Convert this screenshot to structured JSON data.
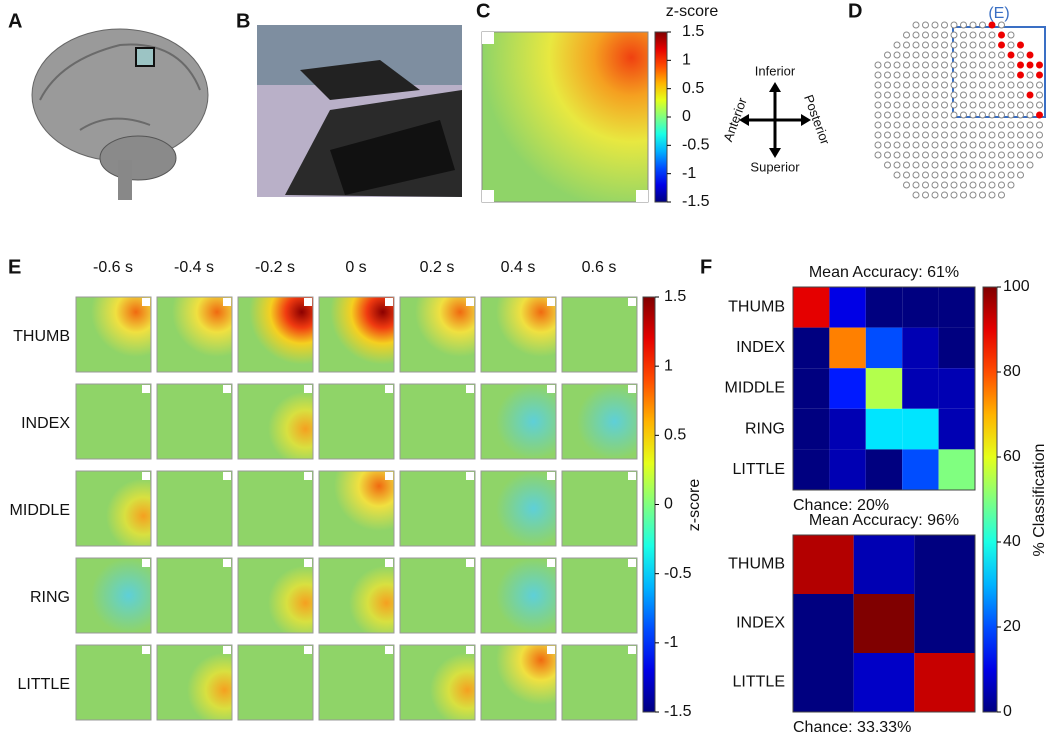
{
  "panel_labels": [
    "A",
    "B",
    "C",
    "D",
    "E",
    "F"
  ],
  "panel_c": {
    "colorbar_title": "z-score",
    "clim": [
      -1.5,
      1.5
    ],
    "colorbar_ticks": [
      1.5,
      1,
      0.5,
      0,
      -0.5,
      -1,
      -1.5
    ],
    "directions": {
      "inferior": "Inferior",
      "superior": "Superior",
      "anterior": "Anterior",
      "posterior": "Posterior"
    }
  },
  "panel_d": {
    "inset_label": "(E)"
  },
  "panel_e": {
    "times": [
      "-0.6 s",
      "-0.4 s",
      "-0.2 s",
      "0 s",
      "0.2 s",
      "0.4 s",
      "0.6 s"
    ],
    "fingers": [
      "THUMB",
      "INDEX",
      "MIDDLE",
      "RING",
      "LITTLE"
    ],
    "colorbar_label": "z-score",
    "clim": [
      -1.5,
      1.5
    ],
    "colorbar_ticks": [
      1.5,
      1,
      0.5,
      0,
      -0.5,
      -1,
      -1.5
    ]
  },
  "panel_f": {
    "colorbar_label": "% Classification",
    "clim": [
      0,
      100
    ],
    "colorbar_ticks": [
      100,
      80,
      60,
      40,
      20,
      0
    ],
    "matrices": [
      {
        "title": "Mean Accuracy: 61%",
        "chance": "Chance: 20%",
        "labels": [
          "THUMB",
          "INDEX",
          "MIDDLE",
          "RING",
          "LITTLE"
        ],
        "values": [
          [
            90,
            10,
            0,
            0,
            0
          ],
          [
            0,
            75,
            20,
            5,
            0
          ],
          [
            0,
            15,
            55,
            5,
            5
          ],
          [
            0,
            5,
            35,
            35,
            5
          ],
          [
            0,
            5,
            0,
            20,
            50
          ]
        ]
      },
      {
        "title": "Mean Accuracy: 96%",
        "chance": "Chance: 33.33%",
        "labels": [
          "THUMB",
          "INDEX",
          "LITTLE"
        ],
        "values": [
          [
            95,
            5,
            0
          ],
          [
            0,
            100,
            0
          ],
          [
            0,
            7,
            93
          ]
        ]
      }
    ]
  }
}
